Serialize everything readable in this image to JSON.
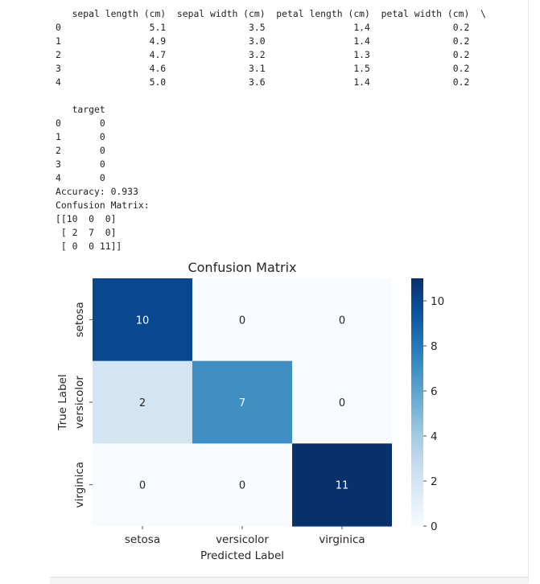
{
  "stdout": {
    "lines": [
      "   sepal length (cm)  sepal width (cm)  petal length (cm)  petal width (cm)  \\",
      "0                5.1               3.5                1.4               0.2",
      "1                4.9               3.0                1.4               0.2",
      "2                4.7               3.2                1.3               0.2",
      "3                4.6               3.1                1.5               0.2",
      "4                5.0               3.6                1.4               0.2",
      "",
      "   target",
      "0       0",
      "1       0",
      "2       0",
      "3       0",
      "4       0",
      "Accuracy: 0.933",
      "Confusion Matrix:",
      "[[10  0  0]",
      " [ 2  7  0]",
      " [ 0  0 11]]"
    ]
  },
  "chart_data": {
    "type": "heatmap",
    "title": "Confusion Matrix",
    "xlabel": "Predicted Label",
    "ylabel": "True Label",
    "x_categories": [
      "setosa",
      "versicolor",
      "virginica"
    ],
    "y_categories": [
      "setosa",
      "versicolor",
      "virginica"
    ],
    "values": [
      [
        10,
        0,
        0
      ],
      [
        2,
        7,
        0
      ],
      [
        0,
        0,
        11
      ]
    ],
    "colormap": "Blues",
    "colorbar": {
      "min": 0,
      "max": 11,
      "ticks": [
        "0",
        "2",
        "4",
        "6",
        "8",
        "10"
      ]
    },
    "annotated": true,
    "grid": false,
    "colors": {
      "low": "#f7fbff",
      "high": "#08306b"
    }
  }
}
